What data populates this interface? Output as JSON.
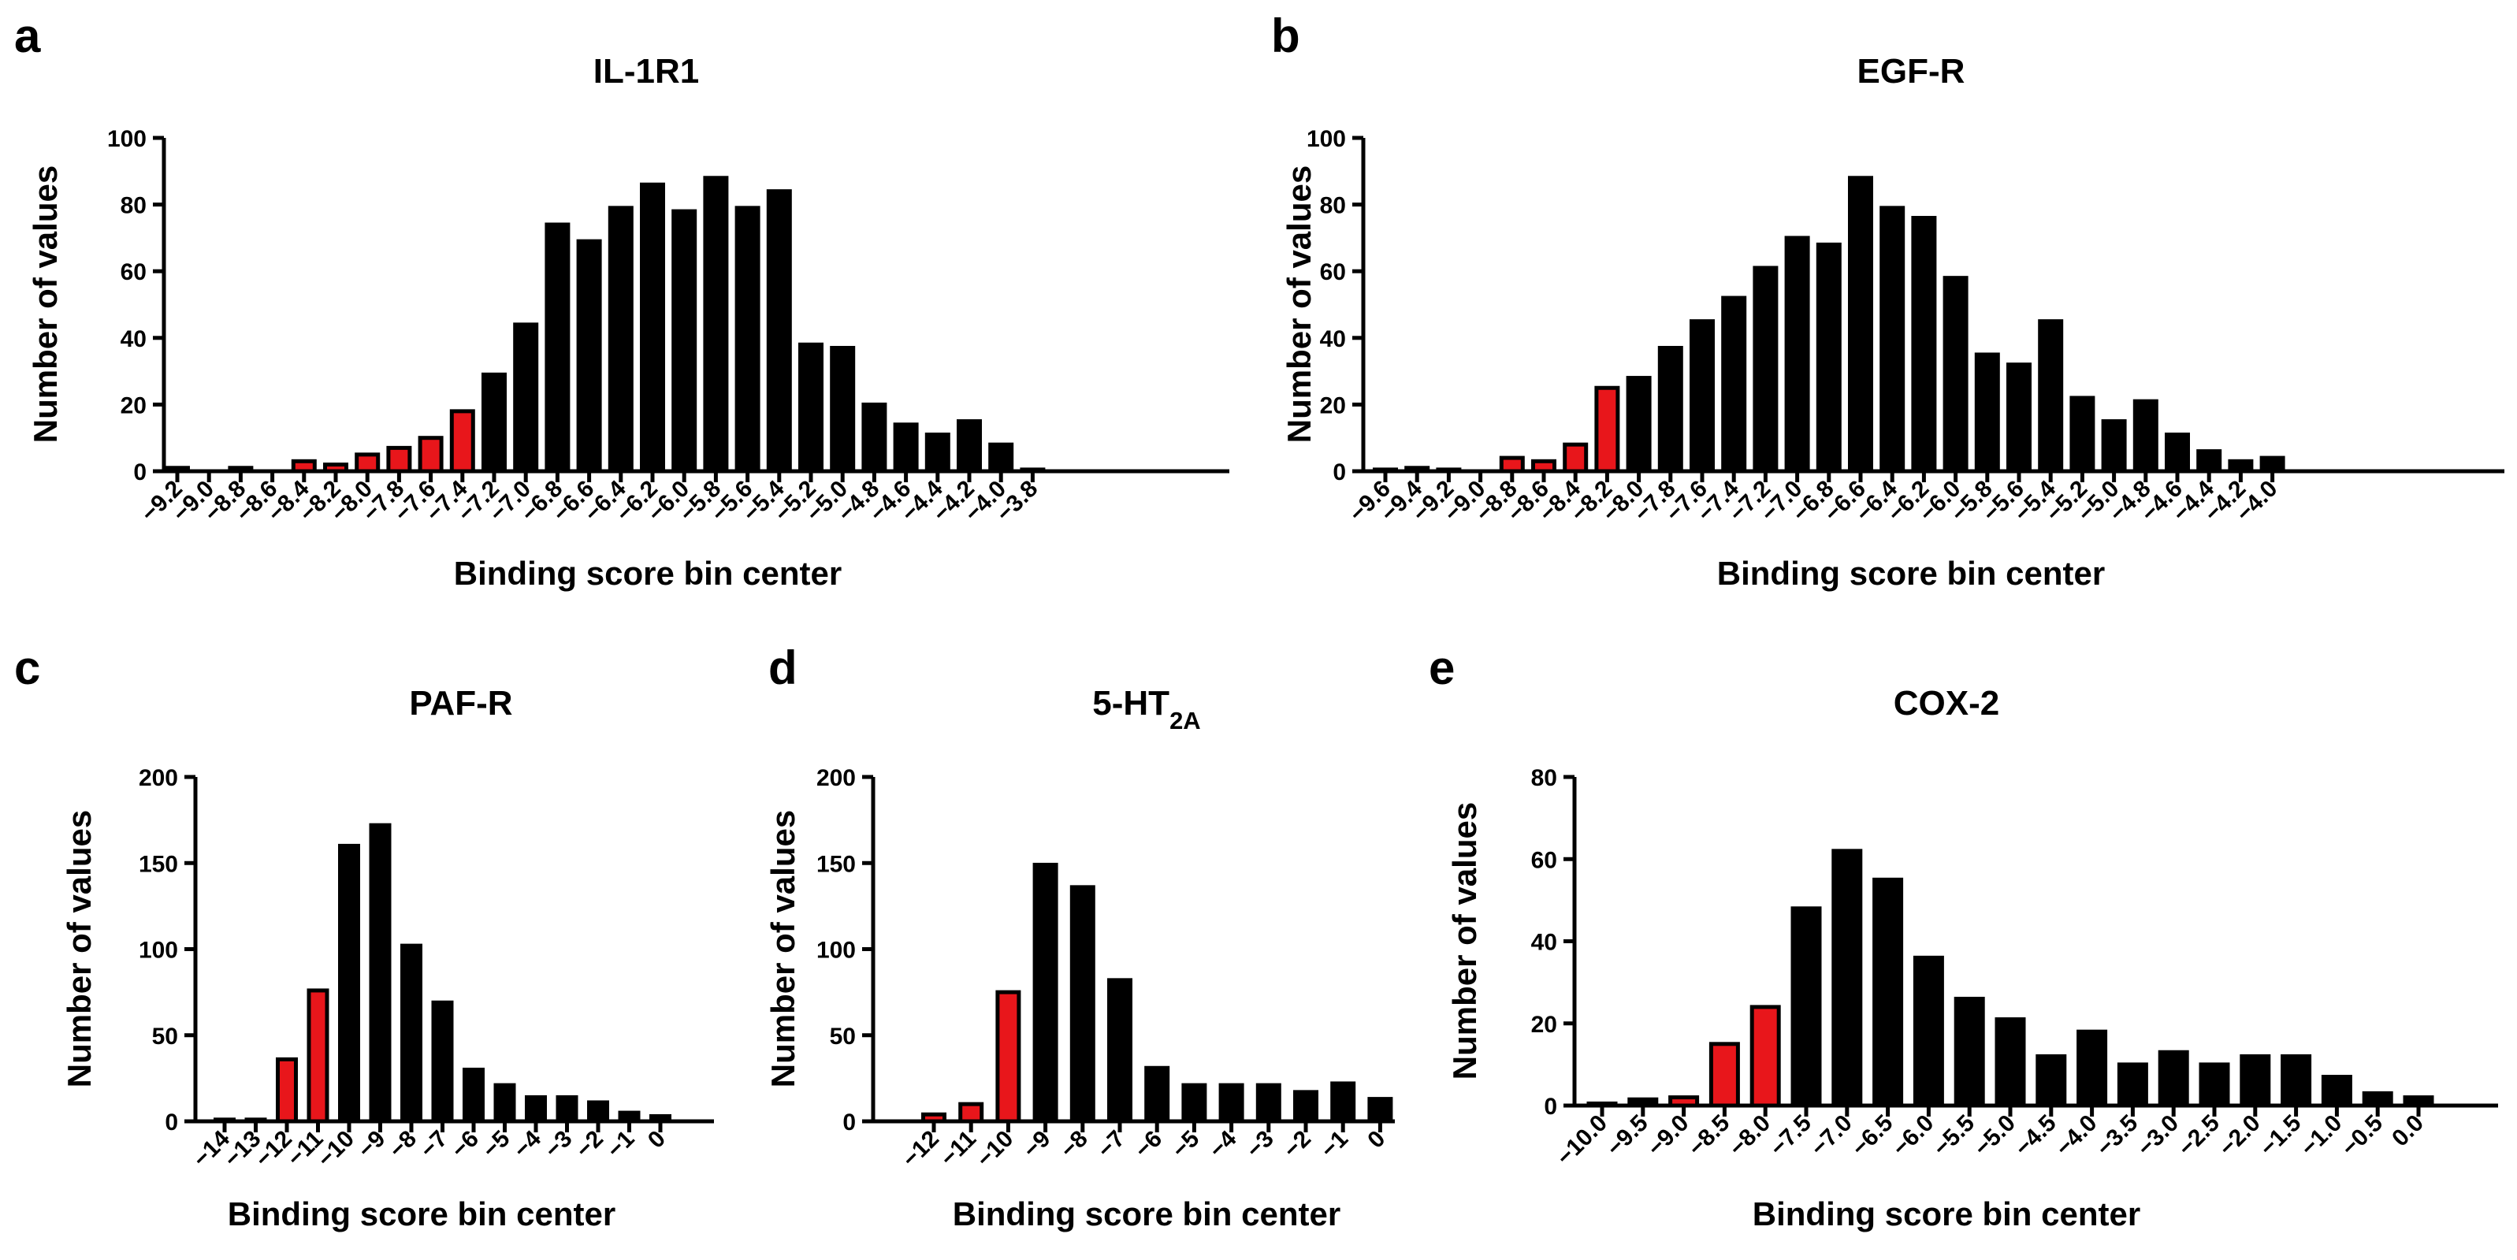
{
  "colors": {
    "highlight": "#e8161b",
    "normal": "#000000"
  },
  "chart_data": [
    {
      "panel": "a",
      "type": "bar",
      "title": "IL-1R1",
      "xlabel": "Binding score bin center",
      "ylabel": "Number of values",
      "ylim": [
        0,
        100
      ],
      "yticks": [
        0,
        20,
        40,
        60,
        80,
        100
      ],
      "categories": [
        "-9.2",
        "-9.0",
        "-8.8",
        "-8.6",
        "-8.4",
        "-8.2",
        "-8.0",
        "-7.8",
        "-7.6",
        "-7.4",
        "-7.2",
        "-7.0",
        "-6.8",
        "-6.6",
        "-6.4",
        "-6.2",
        "-6.0",
        "-5.8",
        "-5.6",
        "-5.4",
        "-5.2",
        "-5.0",
        "-4.8",
        "-4.6",
        "-4.4",
        "-4.2",
        "-4.0",
        "-3.8"
      ],
      "values": [
        1,
        0,
        1,
        0,
        3,
        2,
        5,
        7,
        10,
        18,
        29,
        44,
        74,
        69,
        79,
        86,
        78,
        88,
        79,
        84,
        38,
        37,
        20,
        14,
        11,
        15,
        8,
        0.5
      ],
      "highlighted": [
        4,
        5,
        6,
        7,
        8,
        9
      ]
    },
    {
      "panel": "b",
      "type": "bar",
      "title": "EGF-R",
      "xlabel": "Binding score bin center",
      "ylabel": "Number of values",
      "ylim": [
        0,
        100
      ],
      "yticks": [
        0,
        20,
        40,
        60,
        80,
        100
      ],
      "categories": [
        "-9.6",
        "-9.4",
        "-9.2",
        "-9.0",
        "-8.8",
        "-8.6",
        "-8.4",
        "-8.2",
        "-8.0",
        "-7.8",
        "-7.6",
        "-7.4",
        "-7.2",
        "-7.0",
        "-6.8",
        "-6.6",
        "-6.4",
        "-6.2",
        "-6.0",
        "-5.8",
        "-5.6",
        "-5.4",
        "-5.2",
        "-5.0",
        "-4.8",
        "-4.6",
        "-4.4",
        "-4.2",
        "-4.0"
      ],
      "values": [
        0.5,
        1,
        0.5,
        0,
        4,
        3,
        8,
        25,
        28,
        37,
        45,
        52,
        61,
        70,
        68,
        88,
        79,
        76,
        58,
        35,
        32,
        45,
        22,
        15,
        21,
        11,
        6,
        3,
        4
      ],
      "highlighted": [
        4,
        5,
        6,
        7
      ]
    },
    {
      "panel": "c",
      "type": "bar",
      "title": "PAF-R",
      "xlabel": "Binding score bin center",
      "ylabel": "Number of values",
      "ylim": [
        0,
        200
      ],
      "yticks": [
        0,
        50,
        100,
        150,
        200
      ],
      "categories": [
        "-14",
        "-13",
        "-12",
        "-11",
        "-10",
        "-9",
        "-8",
        "-7",
        "-6",
        "-5",
        "-4",
        "-3",
        "-2",
        "-1",
        "0"
      ],
      "values": [
        1,
        1,
        36,
        76,
        160,
        172,
        102,
        69,
        30,
        21,
        14,
        14,
        11,
        5,
        3
      ],
      "highlighted": [
        2,
        3
      ]
    },
    {
      "panel": "d",
      "type": "bar",
      "title": "5-HT",
      "title_subscript": "2A",
      "xlabel": "Binding score bin center",
      "ylabel": "Number of values",
      "ylim": [
        0,
        200
      ],
      "yticks": [
        0,
        50,
        100,
        150,
        200
      ],
      "categories": [
        "-12",
        "-11",
        "-10",
        "-9",
        "-8",
        "-7",
        "-6",
        "-5",
        "-4",
        "-3",
        "-2",
        "-1",
        "0"
      ],
      "values": [
        4,
        10,
        75,
        149,
        136,
        82,
        31,
        21,
        21,
        21,
        17,
        22,
        13
      ],
      "highlighted": [
        0,
        1,
        2
      ]
    },
    {
      "panel": "e",
      "type": "bar",
      "title": "COX-2",
      "xlabel": "Binding score bin center",
      "ylabel": "Number of values",
      "ylim": [
        0,
        80
      ],
      "yticks": [
        0,
        20,
        40,
        60,
        80
      ],
      "categories": [
        "-10.0",
        "-9.5",
        "-9.0",
        "-8.5",
        "-8.0",
        "-7.5",
        "-7.0",
        "-6.5",
        "-6.0",
        "-5.5",
        "-5.0",
        "-4.5",
        "-4.0",
        "-3.5",
        "-3.0",
        "-2.5",
        "-2.0",
        "-1.5",
        "-1.0",
        "-0.5",
        "0.0"
      ],
      "values": [
        0.5,
        1.5,
        2,
        15,
        24,
        48,
        62,
        55,
        36,
        26,
        21,
        12,
        18,
        10,
        13,
        10,
        12,
        12,
        7,
        3,
        2
      ],
      "highlighted": [
        2,
        3,
        4
      ]
    }
  ]
}
